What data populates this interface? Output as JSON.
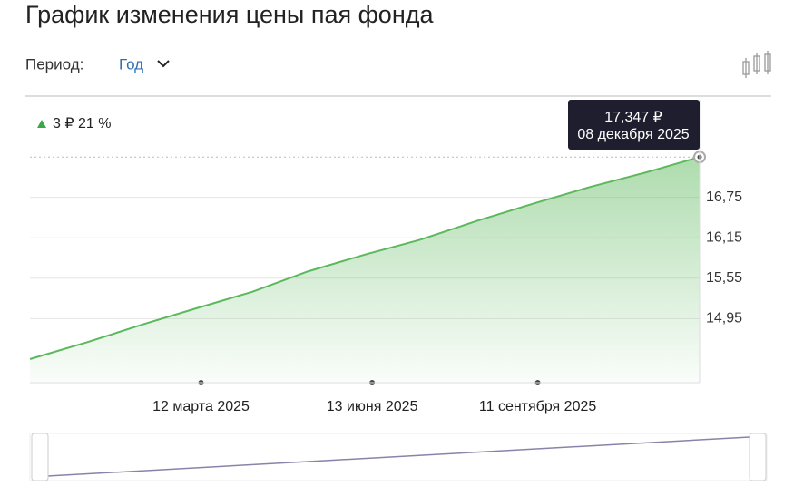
{
  "header": {
    "title": "График изменения цены пая фонда",
    "period_label": "Период:",
    "period_value": "Год"
  },
  "chart_data": {
    "type": "area",
    "change": "3 ₽ 21 %",
    "x": [
      "2024-12-09",
      "2025-01-09",
      "2025-02-09",
      "2025-03-09",
      "2025-04-09",
      "2025-05-09",
      "2025-06-09",
      "2025-07-09",
      "2025-08-09",
      "2025-09-09",
      "2025-10-09",
      "2025-11-09",
      "2025-12-08"
    ],
    "series": [
      {
        "color": "#5cb85c",
        "values": [
          14.35,
          14.6,
          14.87,
          15.1,
          15.35,
          15.65,
          15.9,
          16.12,
          16.4,
          16.66,
          16.9,
          17.12,
          17.347
        ]
      }
    ],
    "xlim": [
      "2024-12-09",
      "2025-12-08"
    ],
    "xticks": [
      {
        "value": "2025-03-12",
        "label": "12 марта 2025"
      },
      {
        "value": "2025-06-13",
        "label": "13 июня 2025"
      },
      {
        "value": "2025-09-11",
        "label": "11 сентября 2025"
      }
    ],
    "ylim": [
      14.0,
      17.35
    ],
    "yticks": [
      {
        "value": 14.95,
        "label": "14,95"
      },
      {
        "value": 15.55,
        "label": "15,55"
      },
      {
        "value": 16.15,
        "label": "16,15"
      },
      {
        "value": 16.75,
        "label": "16,75"
      }
    ],
    "grid": true,
    "tooltip": {
      "value_label": "17,347 ₽",
      "date_label": "08 декабря 2025"
    }
  }
}
